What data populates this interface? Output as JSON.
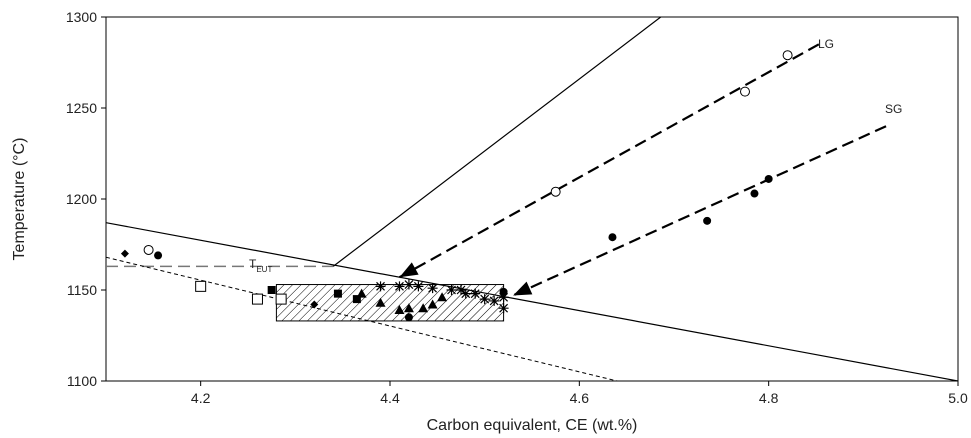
{
  "chart_data": {
    "type": "scatter",
    "xlabel": "Carbon equivalent, CE (wt.%)",
    "ylabel": "Temperature (°C)",
    "xlim": [
      4.1,
      5.0
    ],
    "ylim": [
      1100,
      1300
    ],
    "xticks": [
      4.2,
      4.4,
      4.6,
      4.8,
      {
        "value": 5.0,
        "label": "5.0"
      }
    ],
    "yticks": [
      1100,
      1150,
      1200,
      1250,
      1300
    ],
    "color": "#000000",
    "lines": [
      {
        "style": "solid",
        "x": [
          4.1,
          5.0
        ],
        "values": [
          1187,
          1100
        ]
      },
      {
        "style": "solid",
        "x": [
          4.34,
          4.686
        ],
        "values": [
          1163,
          1300
        ]
      },
      {
        "style": "gray-dashed",
        "x": [
          4.1,
          4.34
        ],
        "values": [
          1163,
          1163
        ]
      },
      {
        "style": "dotted",
        "x": [
          4.1,
          4.64
        ],
        "values": [
          1168,
          1100
        ]
      },
      {
        "style": "bold-dashed-arrow",
        "x": [
          4.853,
          4.41
        ],
        "values": [
          1285,
          1157
        ]
      },
      {
        "style": "bold-dashed-arrow",
        "x": [
          4.924,
          4.53
        ],
        "values": [
          1240,
          1147
        ]
      }
    ],
    "region": {
      "x": [
        4.28,
        4.52
      ],
      "y": [
        1133,
        1153
      ]
    },
    "annotations": [
      {
        "text": "LG"
      },
      {
        "text": "SG"
      },
      {
        "text": "T",
        "sub": "EUT"
      }
    ],
    "series": [
      {
        "marker": "circle-open",
        "x": [
          4.145,
          4.575,
          4.775,
          4.82
        ],
        "values": [
          1172,
          1204,
          1259,
          1279
        ]
      },
      {
        "marker": "circle",
        "x": [
          4.155,
          4.42,
          4.52,
          4.635,
          4.735,
          4.785,
          4.8
        ],
        "values": [
          1169,
          1135,
          1149,
          1179,
          1188,
          1203,
          1211
        ]
      },
      {
        "marker": "diamond",
        "x": [
          4.12,
          4.32
        ],
        "values": [
          1170,
          1142
        ]
      },
      {
        "marker": "square-open",
        "x": [
          4.2,
          4.26,
          4.285
        ],
        "values": [
          1152,
          1145,
          1145
        ]
      },
      {
        "marker": "square",
        "x": [
          4.275,
          4.345,
          4.365
        ],
        "values": [
          1150,
          1148,
          1145
        ]
      },
      {
        "marker": "triangle",
        "x": [
          4.37,
          4.39,
          4.41,
          4.42,
          4.435,
          4.445,
          4.455
        ],
        "values": [
          1148,
          1143,
          1139,
          1140,
          1140,
          1142,
          1146
        ]
      },
      {
        "marker": "star",
        "x": [
          4.39,
          4.41,
          4.42,
          4.43,
          4.445,
          4.465,
          4.475,
          4.48,
          4.49,
          4.5,
          4.51,
          4.52,
          4.52
        ],
        "values": [
          1152,
          1152,
          1153,
          1152,
          1151,
          1150,
          1150,
          1148,
          1148,
          1145,
          1144,
          1146,
          1140
        ]
      }
    ]
  }
}
